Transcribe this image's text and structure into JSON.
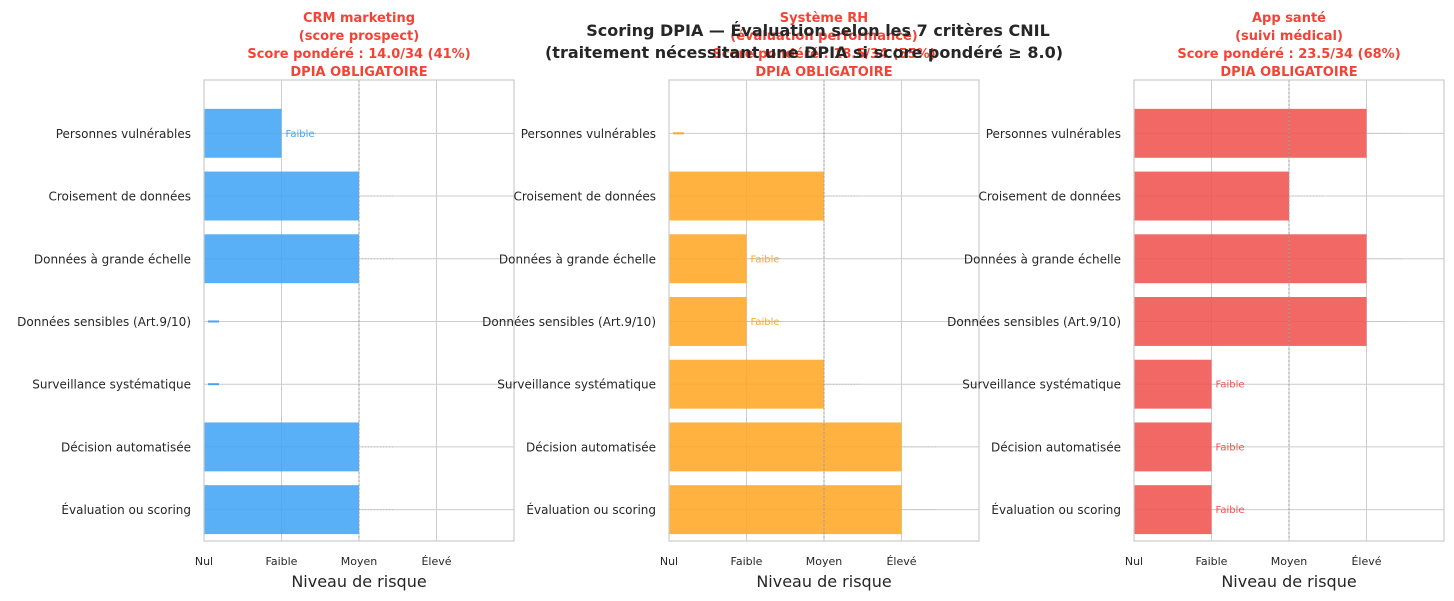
{
  "figure": {
    "title_line1": "Scoring DPIA — Évaluation selon les 7 critères CNIL",
    "title_line2": "(traitement nécessitant une DPIA si score pondéré ≥ 8.0)"
  },
  "colors": {
    "crm": "#42a5f5",
    "rh": "#ffa726",
    "sante": "#ef5350",
    "subtitle": "#f44336",
    "grid": "#cccccc",
    "threshold_line": "#9e9e9e",
    "text": "#262626"
  },
  "chart_data": [
    {
      "type": "bar",
      "orientation": "horizontal",
      "title": [
        "CRM marketing",
        "(score prospect)",
        "Score pondéré : 14.0/34 (41%)",
        "DPIA OBLIGATOIRE"
      ],
      "xlabel": "Niveau de risque",
      "ylabel": "",
      "xlim": [
        0,
        4
      ],
      "xticks": [
        0,
        1,
        2,
        3
      ],
      "xticklabels": [
        "Nul",
        "Faible",
        "Moyen",
        "Élevé"
      ],
      "threshold_x": 2,
      "grid": true,
      "categories": [
        "Personnes vulnérables",
        "Croisement de données",
        "Données à grande échelle",
        "Données sensibles (Art.9/10)",
        "Surveillance systématique",
        "Décision automatisée",
        "Évaluation ou scoring"
      ],
      "values": [
        1,
        2,
        2,
        0,
        0,
        2,
        2
      ],
      "bar_labels": [
        "Faible",
        "",
        "",
        "",
        "",
        "",
        ""
      ],
      "color_key": "crm"
    },
    {
      "type": "bar",
      "orientation": "horizontal",
      "title": [
        "Système RH",
        "(évaluation performance)",
        "Score pondéré : 18.5/34 (55%)",
        "DPIA OBLIGATOIRE"
      ],
      "xlabel": "Niveau de risque",
      "ylabel": "",
      "xlim": [
        0,
        4
      ],
      "xticks": [
        0,
        1,
        2,
        3
      ],
      "xticklabels": [
        "Nul",
        "Faible",
        "Moyen",
        "Élevé"
      ],
      "threshold_x": 2,
      "grid": true,
      "categories": [
        "Personnes vulnérables",
        "Croisement de données",
        "Données à grande échelle",
        "Données sensibles (Art.9/10)",
        "Surveillance systématique",
        "Décision automatisée",
        "Évaluation ou scoring"
      ],
      "values": [
        0,
        2,
        1,
        1,
        2,
        3,
        3
      ],
      "bar_labels": [
        "",
        "",
        "Faible",
        "Faible",
        "",
        "",
        ""
      ],
      "color_key": "rh"
    },
    {
      "type": "bar",
      "orientation": "horizontal",
      "title": [
        "App santé",
        "(suivi médical)",
        "Score pondéré : 23.5/34 (68%)",
        "DPIA OBLIGATOIRE"
      ],
      "xlabel": "Niveau de risque",
      "ylabel": "",
      "xlim": [
        0,
        4
      ],
      "xticks": [
        0,
        1,
        2,
        3
      ],
      "xticklabels": [
        "Nul",
        "Faible",
        "Moyen",
        "Élevé"
      ],
      "threshold_x": 2,
      "grid": true,
      "categories": [
        "Personnes vulnérables",
        "Croisement de données",
        "Données à grande échelle",
        "Données sensibles (Art.9/10)",
        "Surveillance systématique",
        "Décision automatisée",
        "Évaluation ou scoring"
      ],
      "values": [
        3,
        2,
        3,
        3,
        1,
        1,
        1
      ],
      "bar_labels": [
        "",
        "",
        "",
        "",
        "Faible",
        "Faible",
        "Faible"
      ],
      "color_key": "sante"
    }
  ]
}
